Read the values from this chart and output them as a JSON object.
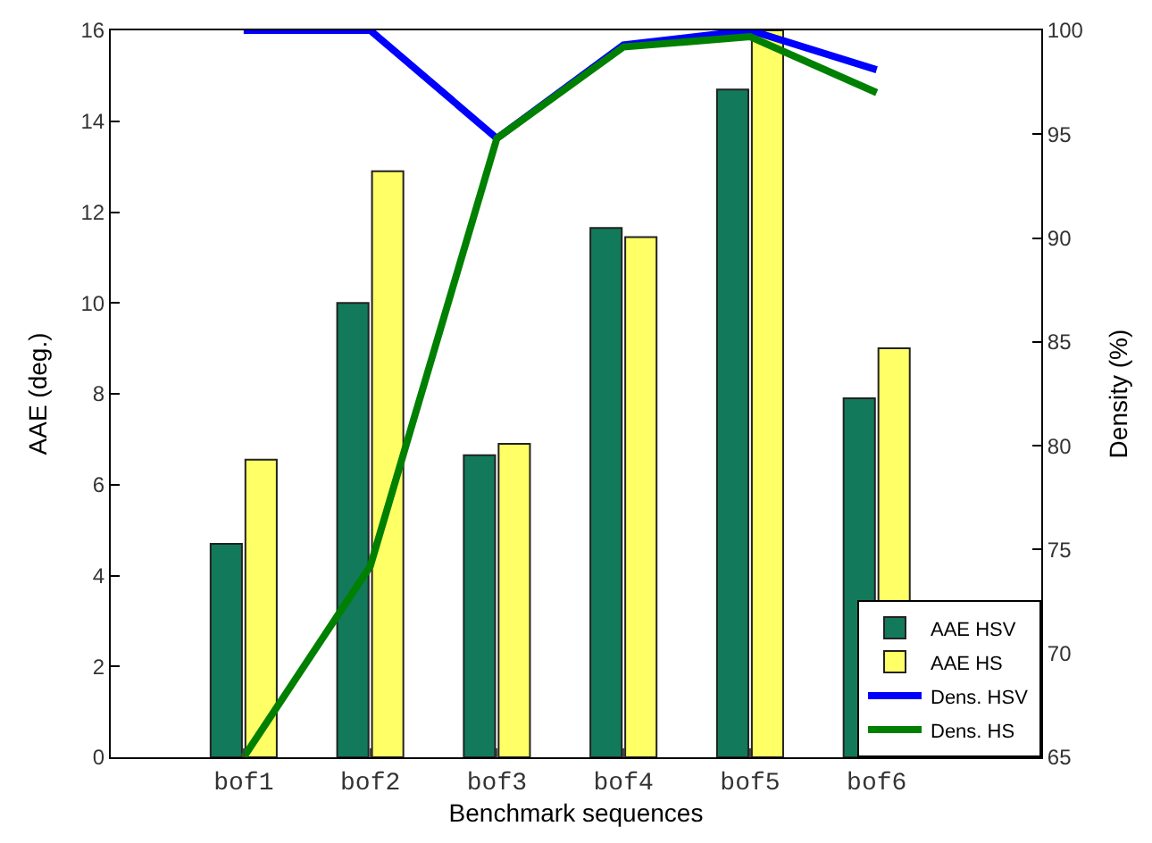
{
  "chart_data": {
    "type": "bar",
    "xlabel": "Benchmark sequences",
    "ylabel": "AAE (deg.)",
    "y2label": "Density (%)",
    "categories": [
      "bof1",
      "bof2",
      "bof3",
      "bof4",
      "bof5",
      "bof6"
    ],
    "series": [
      {
        "name": "AAE HSV",
        "color": "#127a5a",
        "values": [
          4.7,
          10.0,
          6.65,
          11.65,
          14.7,
          7.9
        ]
      },
      {
        "name": "AAE HS",
        "color": "#ffff66",
        "values": [
          6.55,
          12.9,
          6.9,
          11.45,
          16.0,
          9.0
        ]
      },
      {
        "name": "Dens. HSV",
        "type": "line",
        "axis": "y2",
        "color": "#0000ff",
        "values": [
          100,
          100,
          94.8,
          99.3,
          100,
          98.1
        ]
      },
      {
        "name": "Dens. HS",
        "type": "line",
        "axis": "y2",
        "color": "#008000",
        "values": [
          65,
          74.2,
          94.8,
          99.2,
          99.7,
          97.0
        ]
      }
    ],
    "ylim": [
      0,
      16
    ],
    "yticks": [
      0,
      2,
      4,
      6,
      8,
      10,
      12,
      14,
      16
    ],
    "y2lim": [
      65,
      100
    ],
    "y2ticks": [
      65,
      70,
      75,
      80,
      85,
      90,
      95,
      100
    ],
    "legend": "bottom right"
  }
}
